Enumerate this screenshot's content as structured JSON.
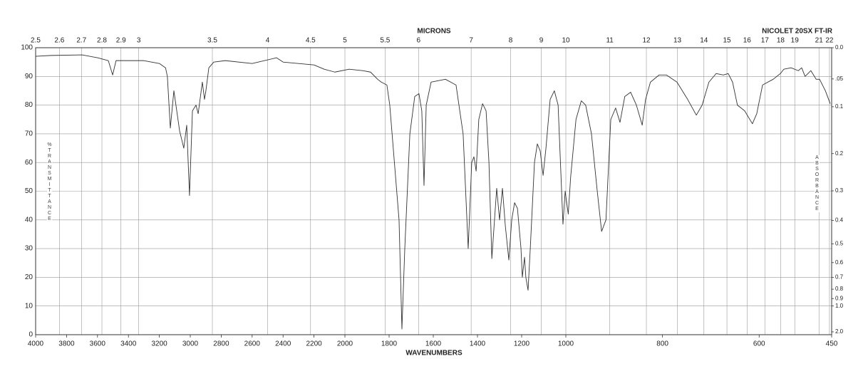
{
  "chart_data": {
    "type": "line",
    "instrument": "NICOLET 20SX FT-IR",
    "x_label": "WAVENUMBERS",
    "x2_label": "MICRONS",
    "y_label": "%TRANSMITTANCE",
    "y2_label": "ABSORBANCE",
    "xlim": [
      4000,
      450
    ],
    "x_breaks": [
      2000,
      1000
    ],
    "xticks": [
      4000,
      3800,
      3600,
      3400,
      3200,
      3000,
      2800,
      2600,
      2400,
      2200,
      2000,
      1800,
      1600,
      1400,
      1200,
      1000,
      800,
      600,
      450
    ],
    "x2_scale": "reciprocal",
    "x2ticks": [
      2.5,
      2.6,
      2.7,
      2.8,
      2.9,
      3,
      3.5,
      4,
      4.5,
      5,
      5.5,
      6,
      7,
      8,
      9,
      10,
      11,
      12,
      13,
      14,
      15,
      16,
      17,
      18,
      19,
      21,
      22
    ],
    "ylim": [
      0,
      100
    ],
    "yticks": [
      0,
      10,
      20,
      30,
      40,
      50,
      60,
      70,
      80,
      90,
      100
    ],
    "y2_scale": "absorbance",
    "y2ticks": [
      {
        "value": 0,
        "label": "0.0"
      },
      {
        "value": 0.05,
        "label": ".05"
      },
      0.1,
      0.2,
      0.3,
      0.4,
      0.5,
      0.6,
      0.7,
      0.8,
      0.9,
      {
        "value": 1,
        "label": "1.0"
      },
      {
        "value": 2,
        "label": "2.0"
      }
    ],
    "grid": true,
    "color": "#333333",
    "x": [
      4000,
      3900,
      3700,
      3600,
      3530,
      3502,
      3480,
      3400,
      3300,
      3200,
      3160,
      3148,
      3129,
      3106,
      3069,
      3042,
      3023,
      3005,
      2986,
      2963,
      2949,
      2922,
      2908,
      2899,
      2880,
      2848,
      2774,
      2600,
      2442,
      2400,
      2300,
      2200,
      2134,
      2065,
      1981,
      1920,
      1884,
      1852,
      1835,
      1810,
      1797,
      1755,
      1742,
      1729,
      1706,
      1684,
      1665,
      1652,
      1642,
      1632,
      1610,
      1545,
      1497,
      1465,
      1442,
      1426,
      1416,
      1406,
      1394,
      1377,
      1361,
      1348,
      1335,
      1313,
      1300,
      1287,
      1274,
      1258,
      1245,
      1232,
      1219,
      1203,
      1197,
      1187,
      1181,
      1171,
      1161,
      1142,
      1129,
      1116,
      1103,
      1090,
      1071,
      1052,
      1035,
      1013,
      1003,
      995,
      990,
      979,
      968,
      959,
      947,
      935,
      926,
      917,
      907,
      897,
      888,
      878,
      866,
      854,
      842,
      835,
      825,
      807,
      792,
      770,
      748,
      730,
      718,
      704,
      689,
      674,
      664,
      655,
      645,
      630,
      614,
      605,
      593,
      571,
      556,
      549,
      534,
      519,
      512,
      505,
      493,
      482,
      475,
      463,
      453
    ],
    "values": [
      97,
      97.3,
      97.5,
      96.5,
      95.5,
      90.5,
      95.5,
      95.5,
      95.5,
      94.5,
      93,
      90,
      72,
      85,
      71,
      65,
      73,
      48.5,
      78,
      80,
      77,
      88,
      82,
      85,
      93,
      95,
      95.5,
      94.5,
      96.5,
      95,
      94.5,
      94,
      92.5,
      91.5,
      92.5,
      92,
      91.5,
      89,
      88,
      87,
      80,
      40,
      2,
      30,
      70,
      83,
      84,
      78,
      52,
      80,
      88,
      89,
      87,
      70,
      30,
      60,
      62,
      57,
      75,
      80.5,
      78,
      60,
      26.5,
      51,
      40,
      51,
      38,
      26,
      40,
      46,
      44,
      30,
      20,
      27,
      20,
      15.5,
      30,
      60,
      66.5,
      64,
      55.5,
      65,
      82,
      85,
      80,
      38.5,
      50,
      42,
      55,
      75,
      81.5,
      80,
      70,
      50,
      36,
      40,
      75,
      79,
      74,
      83,
      84.5,
      80,
      73,
      82,
      88,
      90.5,
      90.5,
      88,
      82,
      76.5,
      80,
      88,
      91,
      90.5,
      91,
      88,
      80,
      78,
      73.5,
      77,
      87,
      89,
      91,
      92.5,
      93,
      92,
      93,
      90,
      92,
      89,
      89,
      85,
      80.5
    ]
  }
}
